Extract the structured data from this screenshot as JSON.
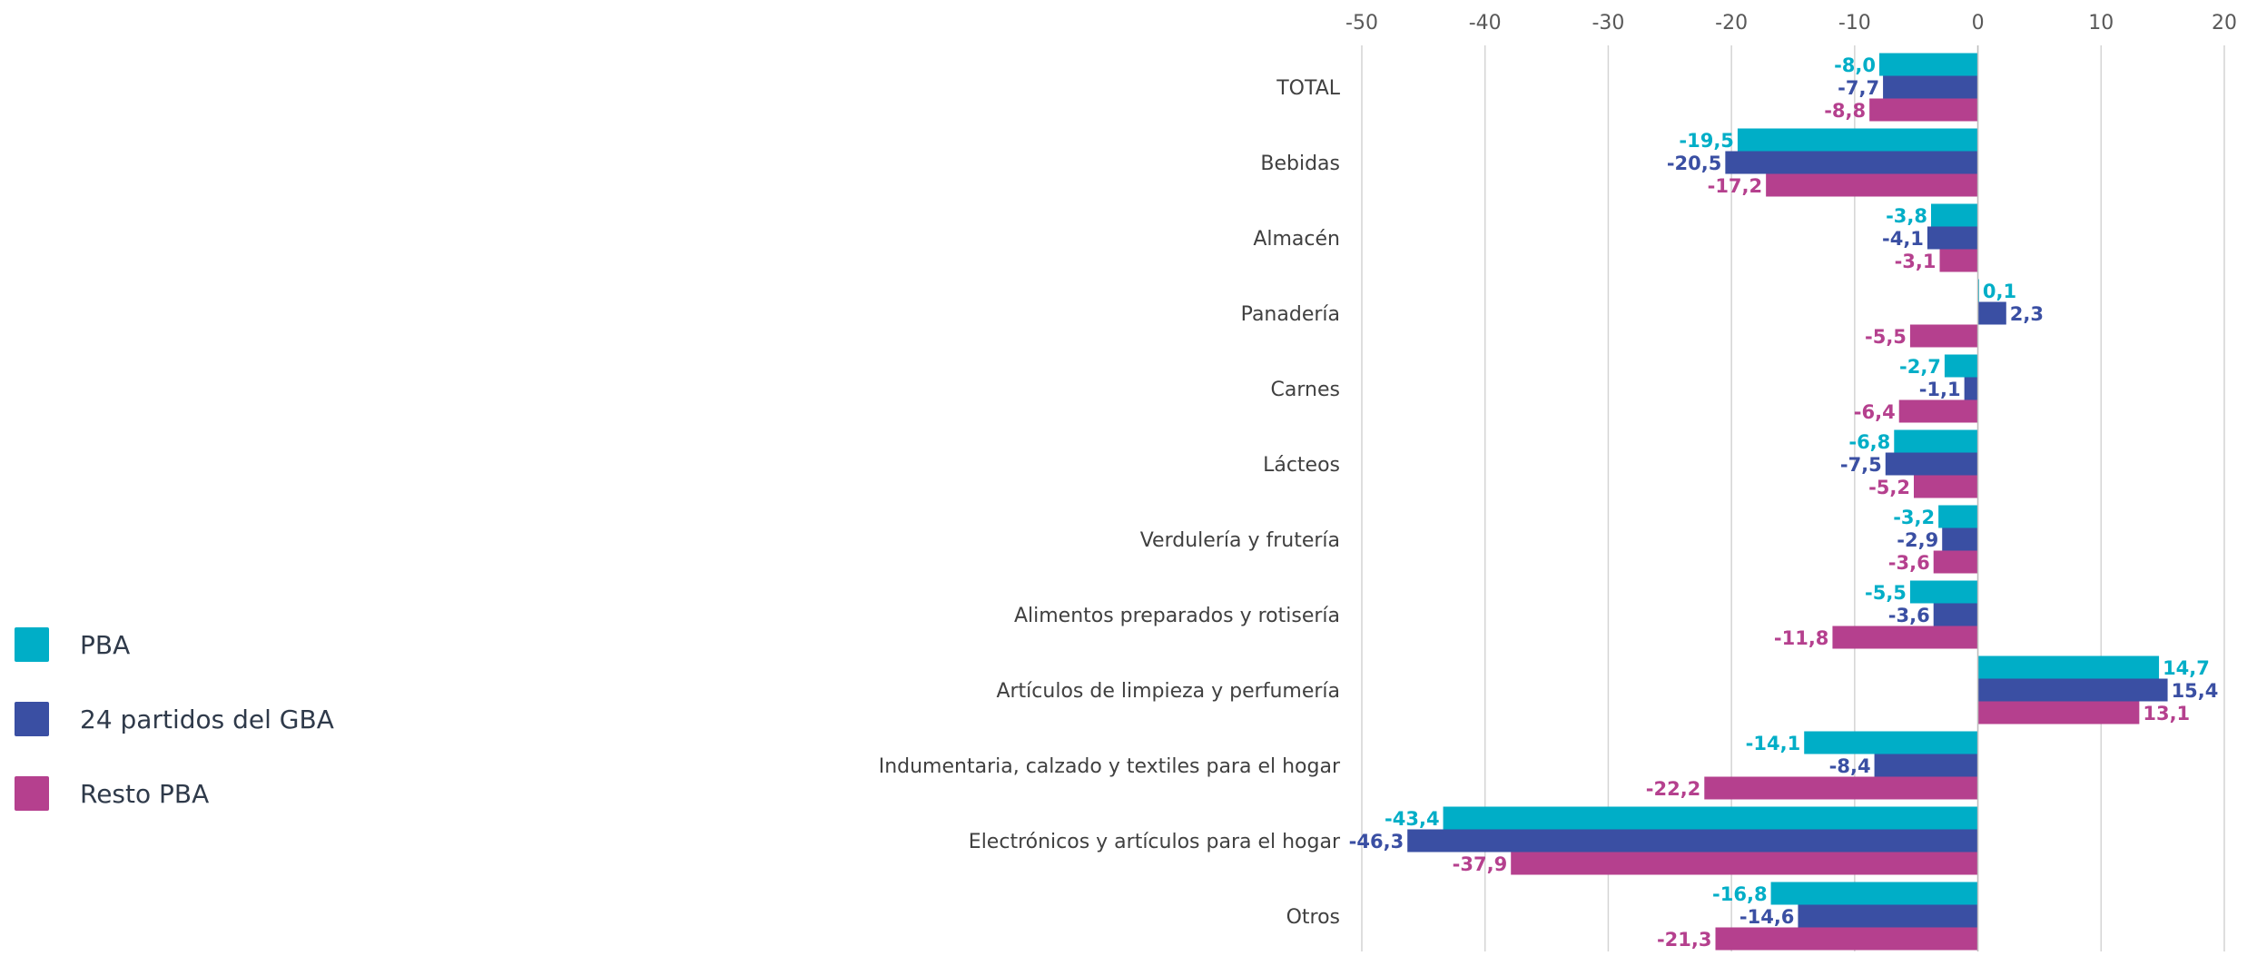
{
  "chart_data": {
    "type": "bar",
    "orientation": "horizontal",
    "title": "",
    "xlabel": "",
    "ylabel": "",
    "xlim": [
      -50,
      20
    ],
    "xticks": [
      -50,
      -40,
      -30,
      -20,
      -10,
      0,
      10,
      20
    ],
    "xtick_labels": [
      "-50",
      "-40",
      "-30",
      "-20",
      "-10",
      "0",
      "10",
      "20"
    ],
    "grid": "vertical",
    "legend_position": "left",
    "categories": [
      "TOTAL",
      "Bebidas",
      "Almacén",
      "Panadería",
      "Carnes",
      "Lácteos",
      "Verdulería y frutería",
      "Alimentos preparados y rotisería",
      "Artículos de limpieza y perfumería",
      "Indumentaria, calzado y textiles para el hogar",
      "Electrónicos y artículos para el hogar",
      "Otros"
    ],
    "series": [
      {
        "name": "PBA",
        "color": "#00aec7",
        "values": [
          -8.0,
          -19.5,
          -3.8,
          0.1,
          -2.7,
          -6.8,
          -3.2,
          -5.5,
          14.7,
          -14.1,
          -43.4,
          -16.8
        ],
        "labels": [
          "-8,0",
          "-19,5",
          "-3,8",
          "0,1",
          "-2,7",
          "-6,8",
          "-3,2",
          "-5,5",
          "14,7",
          "-14,1",
          "-43,4",
          "-16,8"
        ]
      },
      {
        "name": "24 partidos del GBA",
        "color": "#3a4fa3",
        "values": [
          -7.7,
          -20.5,
          -4.1,
          2.3,
          -1.1,
          -7.5,
          -2.9,
          -3.6,
          15.4,
          -8.4,
          -46.3,
          -14.6
        ],
        "labels": [
          "-7,7",
          "-20,5",
          "-4,1",
          "2,3",
          "-1,1",
          "-7,5",
          "-2,9",
          "-3,6",
          "15,4",
          "-8,4",
          "-46,3",
          "-14,6"
        ]
      },
      {
        "name": "Resto PBA",
        "color": "#b5408e",
        "values": [
          -8.8,
          -17.2,
          -3.1,
          -5.5,
          -6.4,
          -5.2,
          -3.6,
          -11.8,
          13.1,
          -22.2,
          -37.9,
          -21.3
        ],
        "labels": [
          "-8,8",
          "-17,2",
          "-3,1",
          "-5,5",
          "-6,4",
          "-5,2",
          "-3,6",
          "-11,8",
          "13,1",
          "-22,2",
          "-37,9",
          "-21,3"
        ]
      }
    ]
  }
}
